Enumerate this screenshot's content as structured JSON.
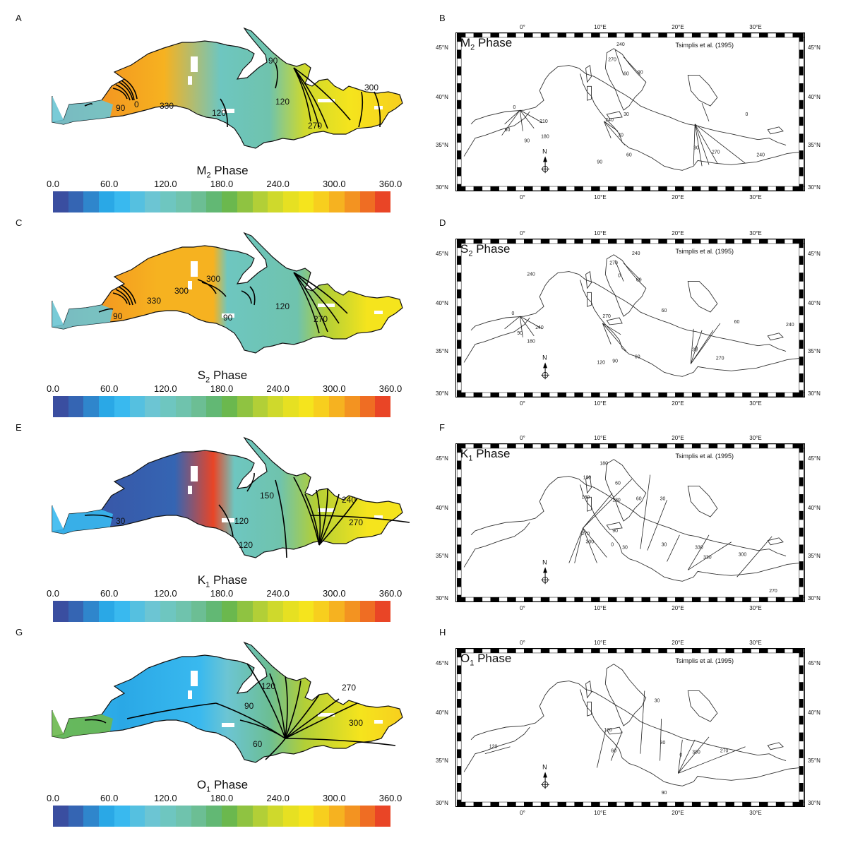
{
  "panels": [
    {
      "letter": "A",
      "kind": "model",
      "constituent": "M",
      "sub": "2",
      "phase_word": "Phase",
      "labels": [
        "90",
        "0",
        "330",
        "120",
        "120",
        "270",
        "300",
        "90"
      ]
    },
    {
      "letter": "B",
      "kind": "obs",
      "constituent": "M",
      "sub": "2",
      "phase_word": "Phase",
      "citation": "Tsimplis et al. (1995)"
    },
    {
      "letter": "C",
      "kind": "model",
      "constituent": "S",
      "sub": "2",
      "phase_word": "Phase",
      "labels": [
        "90",
        "330",
        "300",
        "300",
        "90",
        "120",
        "270"
      ]
    },
    {
      "letter": "D",
      "kind": "obs",
      "constituent": "S",
      "sub": "2",
      "phase_word": "Phase",
      "citation": "Tsimplis et al. (1995)"
    },
    {
      "letter": "E",
      "kind": "model",
      "constituent": "K",
      "sub": "1",
      "phase_word": "Phase",
      "labels": [
        "30",
        "150",
        "120",
        "120",
        "240",
        "270"
      ]
    },
    {
      "letter": "F",
      "kind": "obs",
      "constituent": "K",
      "sub": "1",
      "phase_word": "Phase",
      "citation": "Tsimplis et al. (1995)"
    },
    {
      "letter": "G",
      "kind": "model",
      "constituent": "O",
      "sub": "1",
      "phase_word": "Phase",
      "labels": [
        "120",
        "90",
        "60",
        "270",
        "300"
      ]
    },
    {
      "letter": "H",
      "kind": "obs",
      "constituent": "O",
      "sub": "1",
      "phase_word": "Phase",
      "citation": "Tsimplis et al. (1995)"
    }
  ],
  "colorbar": {
    "labels": [
      "0.0",
      "60.0",
      "120.0",
      "180.0",
      "240.0",
      "300.0",
      "360.0"
    ],
    "min": 0,
    "max": 360,
    "colors": [
      "#3a4ea0",
      "#3565b3",
      "#2f86cc",
      "#2aa8e6",
      "#39b9ef",
      "#55c0e0",
      "#6cc5d3",
      "#6ec6c0",
      "#6fc3ad",
      "#6cbe94",
      "#62b874",
      "#6bb84e",
      "#8fc341",
      "#b2cf37",
      "#cfd92c",
      "#e6e022",
      "#f5e41d",
      "#f7cf1e",
      "#f6b220",
      "#f39321",
      "#ef6d23",
      "#e94526"
    ]
  },
  "obs_map": {
    "lon_ticks": [
      "0°",
      "10°E",
      "20°E",
      "30°E"
    ],
    "lat_ticks": [
      "45°N",
      "40°N",
      "35°N",
      "30°N"
    ],
    "north_label": "N"
  },
  "obs_labels": {
    "B": [
      "240",
      "270",
      "60",
      "90",
      "0",
      "210",
      "180",
      "60",
      "90",
      "240",
      "30",
      "30",
      "60",
      "90",
      "0",
      "30",
      "270",
      "240"
    ],
    "D": [
      "240",
      "270",
      "0",
      "60",
      "240",
      "0",
      "240",
      "90",
      "180",
      "270",
      "120",
      "90",
      "60",
      "60",
      "60",
      "30",
      "0",
      "270",
      "240"
    ],
    "F": [
      "180",
      "180",
      "60",
      "180",
      "180",
      "60",
      "30",
      "270",
      "300",
      "90",
      "0",
      "30",
      "30",
      "330",
      "330",
      "300",
      "270"
    ],
    "H": [
      "120",
      "120",
      "60",
      "30",
      "30",
      "0",
      "300",
      "270",
      "90"
    ]
  }
}
